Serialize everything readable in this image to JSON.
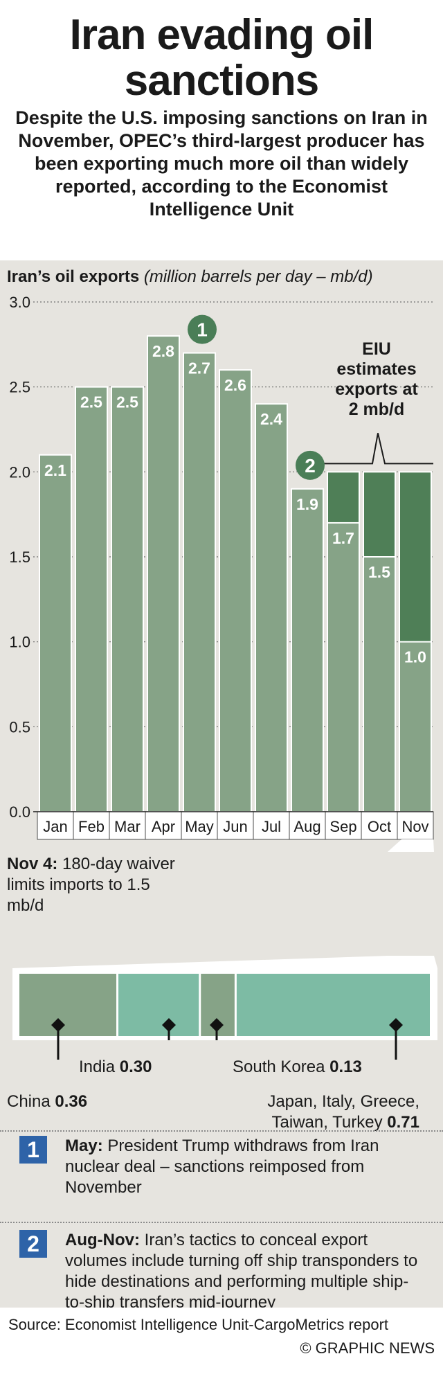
{
  "title": "Iran evading oil sanctions",
  "subtitle": "Despite the U.S. imposing sanctions on Iran in November, OPEC’s third-largest producer has been exporting much more oil than widely reported, according to the Economist Intelligence Unit",
  "chart_data": {
    "type": "bar",
    "title_bold": "Iran’s oil exports",
    "title_italic": "(million barrels per day – mb/d)",
    "categories": [
      "Jan",
      "Feb",
      "Mar",
      "Apr",
      "May",
      "Jun",
      "Jul",
      "Aug",
      "Sep",
      "Oct",
      "Nov"
    ],
    "values": [
      2.1,
      2.5,
      2.5,
      2.8,
      2.7,
      2.6,
      2.4,
      1.9,
      1.7,
      1.5,
      1.0
    ],
    "value_labels": [
      "2.1",
      "2.5",
      "2.5",
      "2.8",
      "2.7",
      "2.6",
      "2.4",
      "1.9",
      "1.7",
      "1.5",
      "1.0"
    ],
    "eiu_estimate": 2.0,
    "eiu_estimate_months": [
      "Sep",
      "Oct",
      "Nov"
    ],
    "ylim": [
      0,
      3.0
    ],
    "yticks": [
      0.0,
      0.5,
      1.0,
      1.5,
      2.0,
      2.5,
      3.0
    ],
    "ytick_labels": [
      "0.0",
      "0.5",
      "1.0",
      "1.5",
      "2.0",
      "2.5",
      "3.0"
    ],
    "grid": true,
    "annotation": "EIU estimates exports at 2 mb/d",
    "markers": [
      {
        "label": "1",
        "category": "May"
      },
      {
        "label": "2",
        "category": "Aug"
      }
    ],
    "colors": {
      "bar": "#86a387",
      "estimate": "#4f7f57",
      "marker": "#4a7e57"
    }
  },
  "waiver_note": {
    "bold": "Nov 4:",
    "text": "180-day waiver limits imports to 1.5 mb/d"
  },
  "destinations": [
    {
      "name": "China",
      "value": "0.36",
      "share": 0.36,
      "color": "#86a387"
    },
    {
      "name": "India",
      "value": "0.30",
      "share": 0.3,
      "color": "#7dbba4"
    },
    {
      "name": "South Korea",
      "value": "0.13",
      "share": 0.13,
      "color": "#86a387"
    },
    {
      "name": "Japan, Italy, Greece, Taiwan, Turkey",
      "value": "0.71",
      "share": 0.71,
      "color": "#7dbba4"
    }
  ],
  "timeline": [
    {
      "badge": "1",
      "bold": "May:",
      "text": "President Trump withdraws from Iran nuclear deal – sanctions reimposed from November"
    },
    {
      "badge": "2",
      "bold": "Aug-Nov:",
      "text": "Iran’s tactics to conceal export volumes include turning off ship transponders to hide destinations and performing multiple ship-to-ship transfers mid-journey"
    }
  ],
  "source": "Source: Economist Intelligence Unit-CargoMetrics report",
  "credit": "© GRAPHIC NEWS"
}
